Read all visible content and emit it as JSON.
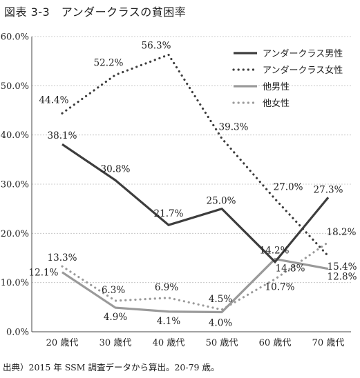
{
  "title": "図表 3-3　アンダークラスの貧困率",
  "note": "出典）2015 年 SSM 調査データから算出。20-79 歳。",
  "colors": {
    "dark": "#3d3d3d",
    "light": "#9a9a9a",
    "axis": "#444444"
  },
  "chart_data": {
    "type": "line",
    "categories": [
      "20 歳代",
      "30 歳代",
      "40 歳代",
      "50 歳代",
      "60 歳代",
      "70 歳代"
    ],
    "ylim": [
      0,
      60
    ],
    "yticks": [
      "0.0%",
      "10.0%",
      "20.0%",
      "30.0%",
      "40.0%",
      "50.0%",
      "60.0%"
    ],
    "grid": true,
    "legend_position": "top-right",
    "series": [
      {
        "name": "アンダークラス男性",
        "color": "#3d3d3d",
        "style": "solid",
        "values": [
          38.1,
          30.8,
          21.7,
          25.0,
          14.2,
          27.3
        ],
        "labels": [
          "38.1%",
          "30.8%",
          "21.7%",
          "25.0%",
          "14.2%",
          "27.3%"
        ]
      },
      {
        "name": "アンダークラス女性",
        "color": "#3d3d3d",
        "style": "dotted",
        "values": [
          44.4,
          52.2,
          56.3,
          39.3,
          27.0,
          15.4
        ],
        "labels": [
          "44.4%",
          "52.2%",
          "56.3%",
          "39.3%",
          "27.0%",
          "15.4%"
        ]
      },
      {
        "name": "他男性",
        "color": "#9a9a9a",
        "style": "solid",
        "values": [
          12.1,
          4.9,
          4.1,
          4.0,
          14.8,
          12.8
        ],
        "labels": [
          "12.1%",
          "4.9%",
          "4.1%",
          "4.0%",
          "14.8%",
          "12.8%"
        ]
      },
      {
        "name": "他女性",
        "color": "#9a9a9a",
        "style": "dotted",
        "values": [
          13.3,
          6.3,
          6.9,
          4.5,
          10.7,
          18.2
        ],
        "labels": [
          "13.3%",
          "6.3%",
          "6.9%",
          "4.5%",
          "10.7%",
          "18.2%"
        ]
      }
    ]
  }
}
